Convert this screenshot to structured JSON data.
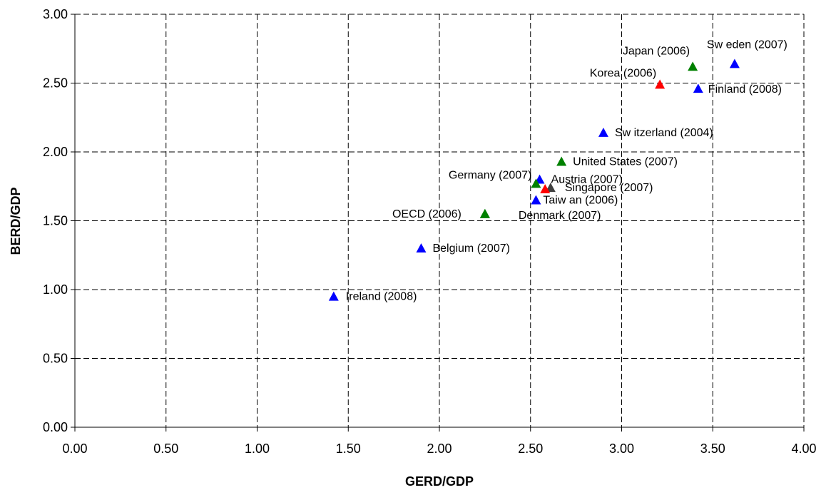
{
  "chart_data": {
    "type": "scatter",
    "title": "",
    "xlabel": "GERD/GDP",
    "ylabel": "BERD/GDP",
    "xlim": [
      0,
      4
    ],
    "ylim": [
      0,
      3
    ],
    "x_ticks": [
      "0.00",
      "0.50",
      "1.00",
      "1.50",
      "2.00",
      "2.50",
      "3.00",
      "3.50",
      "4.00"
    ],
    "y_ticks": [
      "0.00",
      "0.50",
      "1.00",
      "1.50",
      "2.00",
      "2.50",
      "3.00"
    ],
    "grid": true,
    "marker": "triangle",
    "colors": {
      "blue": "#0000ff",
      "green": "#008000",
      "red": "#ff0000",
      "dark": "#404040"
    },
    "points": [
      {
        "label": "Sw eden (2007)",
        "x": 3.62,
        "y": 2.64,
        "color": "blue"
      },
      {
        "label": "Japan (2006)",
        "x": 3.39,
        "y": 2.62,
        "color": "green"
      },
      {
        "label": "Korea (2006)",
        "x": 3.21,
        "y": 2.49,
        "color": "red"
      },
      {
        "label": "Finland (2008)",
        "x": 3.42,
        "y": 2.46,
        "color": "blue"
      },
      {
        "label": "Sw itzerland (2004)",
        "x": 2.9,
        "y": 2.14,
        "color": "blue"
      },
      {
        "label": "United States (2007)",
        "x": 2.67,
        "y": 1.93,
        "color": "green"
      },
      {
        "label": "Austria (2007)",
        "x": 2.55,
        "y": 1.8,
        "color": "blue"
      },
      {
        "label": "Germany (2007)",
        "x": 2.53,
        "y": 1.77,
        "color": "green"
      },
      {
        "label": "Singapore (2007)",
        "x": 2.61,
        "y": 1.74,
        "color": "dark"
      },
      {
        "label": "",
        "x": 2.58,
        "y": 1.73,
        "color": "red"
      },
      {
        "label": "Taiw an (2006)",
        "x": 2.53,
        "y": 1.65,
        "color": "blue"
      },
      {
        "label": "OECD (2006)",
        "x": 2.25,
        "y": 1.55,
        "color": "green"
      },
      {
        "label": "Denmark (2007)",
        "x": 2.25,
        "y": 1.55,
        "color": "green"
      },
      {
        "label": "Belgium (2007)",
        "x": 1.9,
        "y": 1.3,
        "color": "blue"
      },
      {
        "label": "Ireland (2008)",
        "x": 1.42,
        "y": 0.95,
        "color": "blue"
      }
    ]
  }
}
